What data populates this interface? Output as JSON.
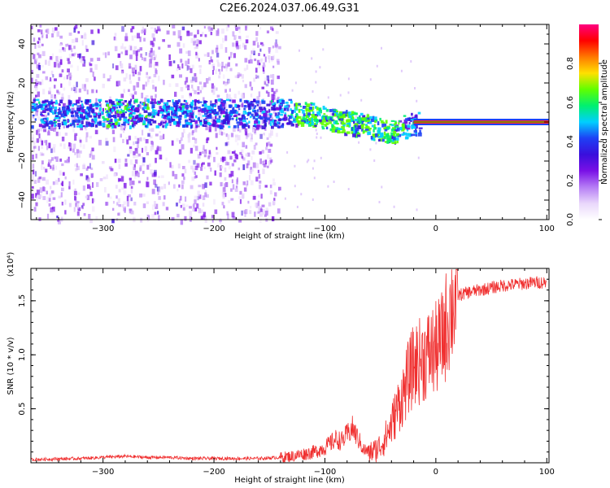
{
  "title": "C2E6.2024.037.06.49.G31",
  "chart_data": [
    {
      "type": "heatmap",
      "xlabel": "Height of straight line (km)",
      "ylabel": "Frequency (Hz)",
      "xlim": [
        -365,
        102
      ],
      "ylim": [
        -50,
        50
      ],
      "xticks": [
        -300,
        -200,
        -100,
        0,
        100
      ],
      "yticks": [
        -40,
        -20,
        0,
        20,
        40
      ],
      "colorbar": {
        "label": "Normalized spectral amplitude",
        "range": [
          0,
          1
        ],
        "ticks": [
          0.0,
          0.2,
          0.4,
          0.6,
          0.8
        ],
        "colors": [
          "#ffffff",
          "#e9d7fb",
          "#b57cf5",
          "#7a10e6",
          "#3a0fdc",
          "#1e40f5",
          "#00cfff",
          "#00f070",
          "#60ff00",
          "#ffe000",
          "#ff7a00",
          "#ff0000",
          "#ff0080"
        ]
      },
      "features": {
        "diffuse_noise_x_range": [
          -365,
          -142
        ],
        "narrow_band_x_range": [
          -20,
          102
        ],
        "narrow_band_frequency": 0
      }
    },
    {
      "type": "line",
      "xlabel": "Height of straight line (km)",
      "ylabel": "SNR (10 * v/v)",
      "scale_label": "(x10⁴)",
      "xlim": [
        -365,
        102
      ],
      "ylim": [
        0,
        1.8
      ],
      "xticks": [
        -300,
        -200,
        -100,
        0,
        100
      ],
      "yticks": [
        0.5,
        1.0,
        1.5
      ],
      "yticklabels": [
        "0.5",
        "1.0",
        "1.5"
      ],
      "color": "#f03030",
      "series": [
        {
          "x": [
            -365,
            -320,
            -300,
            -280,
            -260,
            -240,
            -220,
            -200,
            -180,
            -160,
            -140,
            -130,
            -120,
            -110,
            -100,
            -95,
            -90,
            -85,
            -80,
            -75,
            -70,
            -65,
            -60,
            -55,
            -50,
            -45,
            -40,
            -35,
            -30,
            -25,
            -20,
            -15,
            -10,
            -5,
            0,
            5,
            10,
            15,
            20,
            30,
            40,
            50,
            60,
            70,
            80,
            90,
            100
          ],
          "y": [
            0.03,
            0.04,
            0.05,
            0.06,
            0.05,
            0.05,
            0.04,
            0.04,
            0.04,
            0.04,
            0.05,
            0.06,
            0.08,
            0.1,
            0.14,
            0.18,
            0.22,
            0.2,
            0.26,
            0.32,
            0.22,
            0.12,
            0.1,
            0.11,
            0.16,
            0.24,
            0.35,
            0.5,
            0.62,
            0.78,
            0.9,
            0.94,
            0.98,
            1.02,
            1.05,
            1.12,
            1.3,
            1.48,
            1.55,
            1.58,
            1.6,
            1.62,
            1.64,
            1.65,
            1.66,
            1.67,
            1.67
          ]
        }
      ]
    }
  ]
}
